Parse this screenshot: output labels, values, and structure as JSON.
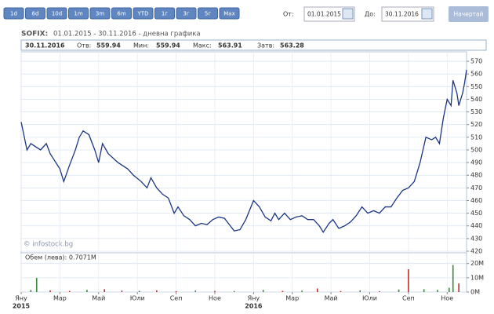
{
  "toolbar": {
    "ranges": [
      "1d",
      "6d",
      "10d",
      "1m",
      "3m",
      "6m",
      "YTD",
      "1г",
      "3г",
      "5г",
      "Max"
    ],
    "from_label": "От:",
    "from_date": "01.01.2015",
    "to_label": "До:",
    "to_date": "30.11.2016",
    "submit": "Начертай"
  },
  "header": {
    "symbol": "SOFIX:",
    "title": "01.01.2015 - 30.11.2016 - дневна графика",
    "date": "30.11.2016",
    "open_label": "Отв:",
    "open": 559.94,
    "low_label": "Мин:",
    "low": 559.94,
    "high_label": "Макс:",
    "high": 563.91,
    "close_label": "Затв:",
    "close": 563.28
  },
  "watermark": "© infostock.bg",
  "chart_data": [
    {
      "type": "line",
      "color": "#1c3580",
      "grid": true,
      "x": [
        0,
        0.3,
        0.5,
        1,
        1.3,
        1.5,
        2,
        2.2,
        2.5,
        2.8,
        3,
        3.2,
        3.5,
        3.8,
        4,
        4.2,
        4.5,
        5,
        5.5,
        5.8,
        6.2,
        6.5,
        6.7,
        7,
        7.3,
        7.6,
        7.9,
        8.1,
        8.4,
        8.7,
        9,
        9.3,
        9.6,
        9.9,
        10.2,
        10.5,
        10.8,
        11,
        11.3,
        11.6,
        12,
        12.3,
        12.6,
        12.9,
        13.1,
        13.3,
        13.6,
        13.9,
        14.2,
        14.5,
        14.8,
        15.1,
        15.4,
        15.6,
        15.9,
        16.1,
        16.4,
        16.7,
        17,
        17.3,
        17.6,
        17.9,
        18.2,
        18.5,
        18.8,
        19.1,
        19.4,
        19.7,
        20,
        20.3,
        20.6,
        20.9,
        21.2,
        21.4,
        21.6,
        21.8,
        22,
        22.2,
        22.3,
        22.5,
        22.6,
        22.8,
        22.9,
        23
      ],
      "values": [
        522,
        500,
        505,
        500,
        505,
        497,
        485,
        475,
        488,
        500,
        510,
        515,
        512,
        500,
        490,
        505,
        497,
        490,
        485,
        480,
        475,
        470,
        478,
        470,
        465,
        462,
        450,
        455,
        448,
        445,
        440,
        442,
        441,
        445,
        447,
        446,
        440,
        436,
        437,
        445,
        460,
        455,
        447,
        444,
        450,
        445,
        450,
        445,
        447,
        448,
        445,
        445,
        440,
        435,
        442,
        445,
        438,
        440,
        443,
        448,
        455,
        450,
        452,
        450,
        455,
        455,
        462,
        468,
        470,
        475,
        490,
        510,
        508,
        510,
        505,
        525,
        540,
        535,
        555,
        545,
        535,
        545,
        553,
        563.28
      ],
      "xlim": [
        0,
        23
      ],
      "xticks": [
        {
          "value": 0,
          "label": "Яну"
        },
        {
          "value": 2,
          "label": "Мар"
        },
        {
          "value": 4,
          "label": "Май"
        },
        {
          "value": 6,
          "label": "Юли"
        },
        {
          "value": 8,
          "label": "Сеп"
        },
        {
          "value": 10,
          "label": "Ное"
        },
        {
          "value": 12,
          "label": "Яну"
        },
        {
          "value": 14,
          "label": "Мар"
        },
        {
          "value": 16,
          "label": "Май"
        },
        {
          "value": 18,
          "label": "Юли"
        },
        {
          "value": 20,
          "label": "Сеп"
        },
        {
          "value": 22,
          "label": "Ное"
        }
      ],
      "year_labels": [
        {
          "value": 0,
          "label": "2015"
        },
        {
          "value": 12,
          "label": "2016"
        }
      ],
      "ylim": [
        420,
        575
      ],
      "yticks": [
        420,
        430,
        440,
        450,
        460,
        470,
        480,
        490,
        500,
        510,
        520,
        530,
        540,
        550,
        560,
        570
      ]
    },
    {
      "type": "bar",
      "title": "Обем (лева): 0.7071M",
      "grid": true,
      "x": [
        0.5,
        0.8,
        1.5,
        2.5,
        3.4,
        4.3,
        5.2,
        6.1,
        7,
        8,
        9,
        10,
        11,
        12.5,
        13.5,
        14.5,
        15.3,
        16.5,
        17.5,
        18.5,
        19.5,
        20,
        20.8,
        21.5,
        22.1,
        22.3,
        22.6
      ],
      "values": [
        1.5,
        10,
        1.2,
        0.8,
        1.5,
        2,
        1,
        0.8,
        1.2,
        0.6,
        1,
        0.8,
        0.7,
        1.5,
        0.8,
        1,
        2.5,
        0.7,
        1.2,
        0.6,
        1.8,
        16,
        2,
        1.5,
        3,
        19,
        6
      ],
      "colors": [
        "#3a8a3a",
        "#3a8a3a",
        "#c03030",
        "#c03030",
        "#3a8a3a",
        "#c03030",
        "#c03030",
        "#3a8a3a",
        "#c03030",
        "#c03030",
        "#3a8a3a",
        "#c03030",
        "#3a8a3a",
        "#3a8a3a",
        "#c03030",
        "#3a8a3a",
        "#c03030",
        "#c03030",
        "#3a8a3a",
        "#c03030",
        "#3a8a3a",
        "#c03030",
        "#3a8a3a",
        "#3a8a3a",
        "#3a8a3a",
        "#3a8a3a",
        "#c03030"
      ],
      "xlim": [
        0,
        23
      ],
      "ylim": [
        0,
        27
      ],
      "yticks": [
        {
          "value": 0,
          "label": "0M"
        },
        {
          "value": 10,
          "label": "10M"
        },
        {
          "value": 20,
          "label": "20M"
        }
      ]
    }
  ]
}
